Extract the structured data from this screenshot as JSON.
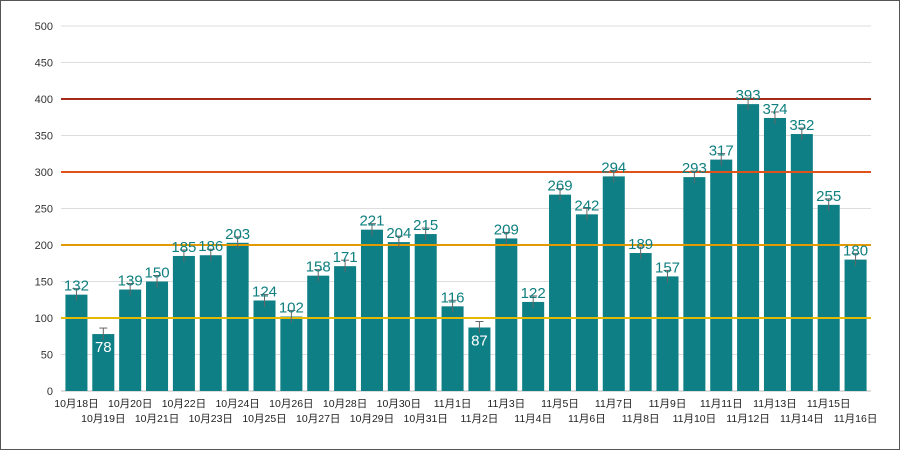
{
  "chart_data": {
    "type": "bar",
    "title": "",
    "xlabel": "",
    "ylabel": "",
    "ylim": [
      0,
      500
    ],
    "yticks": [
      0,
      50,
      100,
      150,
      200,
      250,
      300,
      350,
      400,
      450,
      500
    ],
    "grid": true,
    "legend": "none",
    "categories": [
      "10月18日",
      "10月19日",
      "10月20日",
      "10月21日",
      "10月22日",
      "10月23日",
      "10月24日",
      "10月25日",
      "10月26日",
      "10月27日",
      "10月28日",
      "10月29日",
      "10月30日",
      "10月31日",
      "11月1日",
      "11月2日",
      "11月3日",
      "11月4日",
      "11月5日",
      "11月6日",
      "11月7日",
      "11月8日",
      "11月9日",
      "11月10日",
      "11月11日",
      "11月12日",
      "11月13日",
      "11月14日",
      "11月15日",
      "11月16日"
    ],
    "values": [
      132,
      78,
      139,
      150,
      185,
      186,
      203,
      124,
      102,
      158,
      171,
      221,
      204,
      215,
      116,
      87,
      209,
      122,
      269,
      242,
      294,
      189,
      157,
      293,
      317,
      393,
      374,
      352,
      255,
      180
    ],
    "reference_lines": [
      {
        "value": 100,
        "color": "#e6b800"
      },
      {
        "value": 200,
        "color": "#e39a00"
      },
      {
        "value": 300,
        "color": "#e0521a"
      },
      {
        "value": 400,
        "color": "#a52a1a"
      }
    ],
    "bar_color": "#0f7f86",
    "label_color": "#0f7f7f",
    "grid_color": "#dddddd"
  }
}
